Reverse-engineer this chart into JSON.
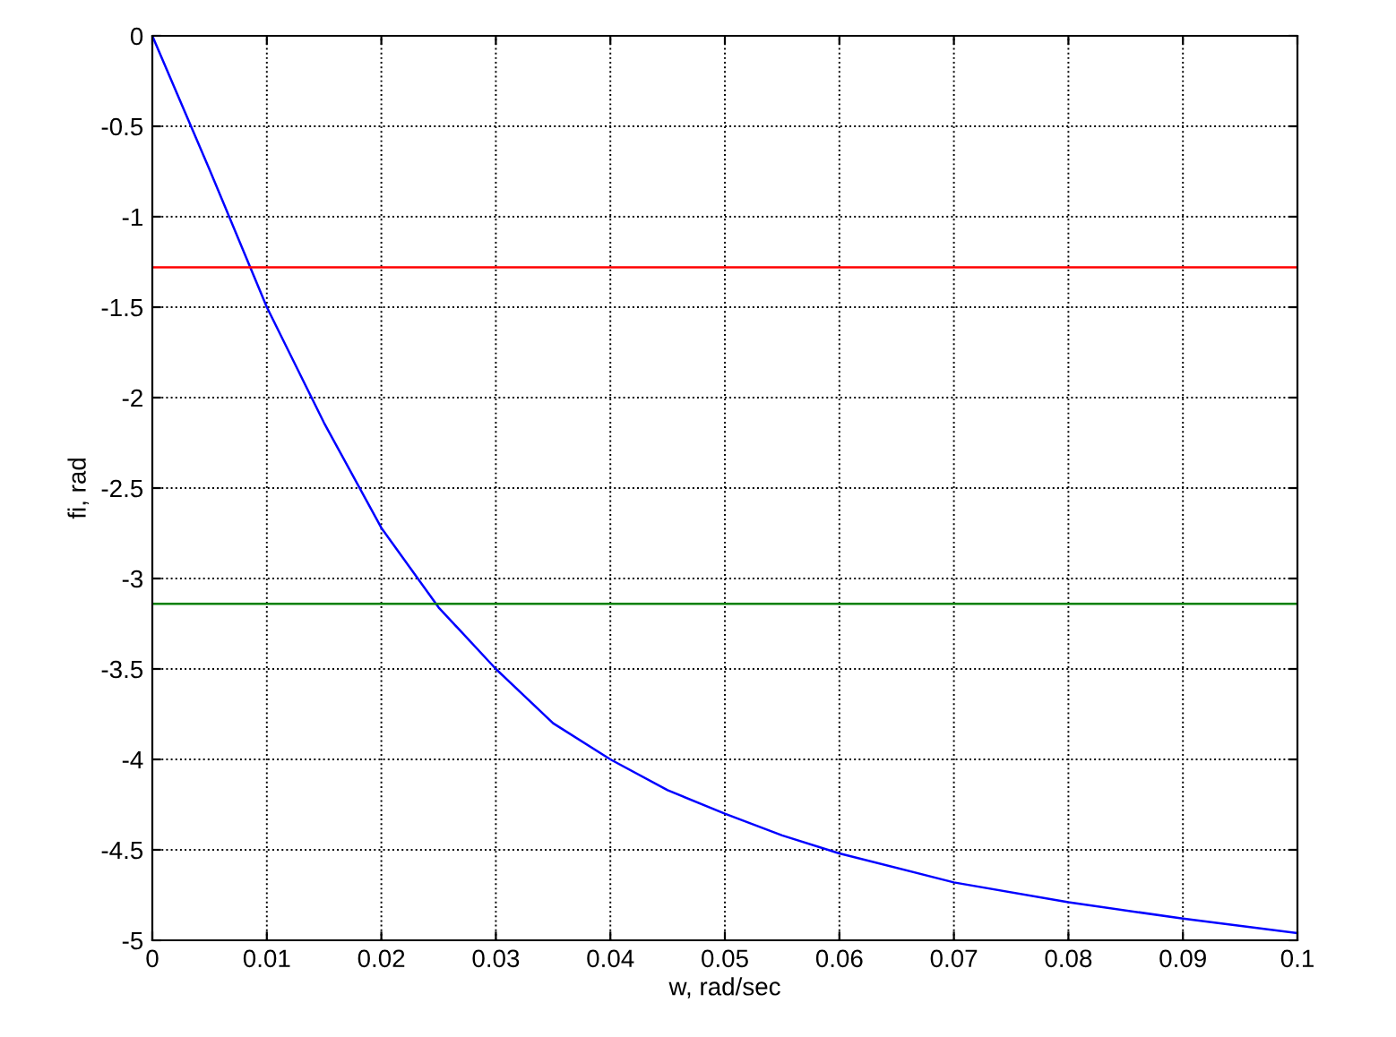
{
  "chart_data": {
    "type": "line",
    "xlabel": "w, rad/sec",
    "ylabel": "fi, rad",
    "x": [
      0,
      0.005,
      0.01,
      0.015,
      0.02,
      0.025,
      0.03,
      0.035,
      0.04,
      0.045,
      0.05,
      0.055,
      0.06,
      0.07,
      0.08,
      0.09,
      0.1
    ],
    "series": [
      {
        "color": "#0000ff",
        "values": [
          0,
          -0.74,
          -1.5,
          -2.14,
          -2.72,
          -3.16,
          -3.5,
          -3.8,
          -4.0,
          -4.17,
          -4.3,
          -4.42,
          -4.52,
          -4.68,
          -4.79,
          -4.88,
          -4.96
        ]
      }
    ],
    "ref_lines": [
      {
        "axis": "y",
        "value": -1.28,
        "color": "#ff0000"
      },
      {
        "axis": "y",
        "value": -3.14,
        "color": "#008000"
      }
    ],
    "xlim": [
      0,
      0.1
    ],
    "ylim": [
      -5,
      0
    ],
    "xticks": [
      0,
      0.01,
      0.02,
      0.03,
      0.04,
      0.05,
      0.06,
      0.07,
      0.08,
      0.09,
      0.1
    ],
    "yticks": [
      -5,
      -4.5,
      -4,
      -3.5,
      -3,
      -2.5,
      -2,
      -1.5,
      -1,
      -0.5,
      0
    ],
    "grid": true,
    "line_style": "solid"
  }
}
